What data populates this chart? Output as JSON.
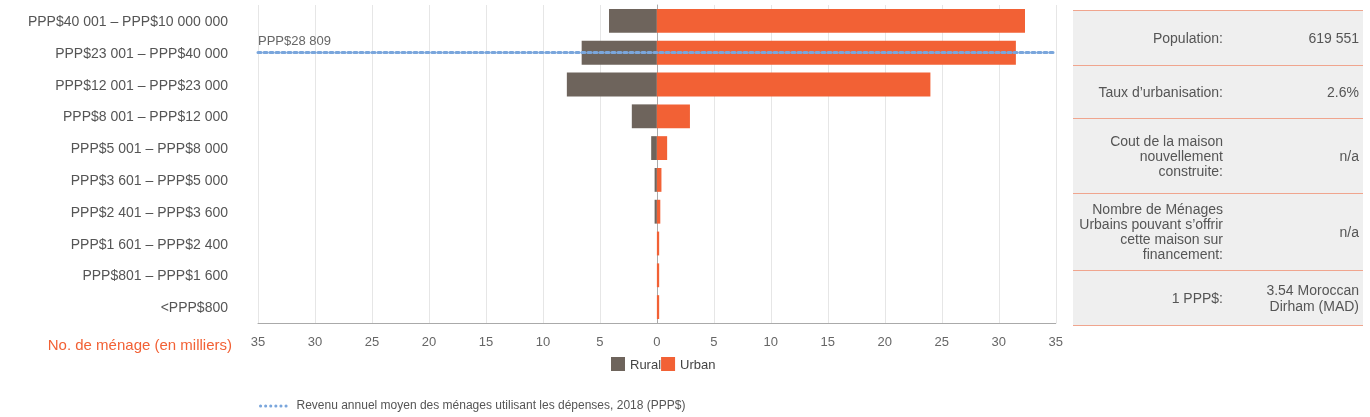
{
  "chart_data": [
    {
      "type": "bar",
      "orientation": "horizontal",
      "stacked": true,
      "xlabel": "No. de ménage (en milliers)",
      "categories": [
        "PPP$40 001 – PPP$10 000 000",
        "PPP$23 001 – PPP$40 000",
        "PPP$12 001 – PPP$23 000",
        "PPP$8 001 – PPP$12 000",
        "PPP$5 001 – PPP$8 000",
        "PPP$3 601 – PPP$5 000",
        "PPP$2 401 – PPP$3 600",
        "PPP$1 601 – PPP$2 400",
        "PPP$801 – PPP$1 600",
        "<PPP$800"
      ],
      "series": [
        {
          "name": "Rural",
          "color": "#6e645c",
          "values": [
            -4.2,
            -6.6,
            -7.9,
            -2.2,
            -0.5,
            -0.2,
            -0.2,
            0,
            0,
            0
          ]
        },
        {
          "name": "Urban",
          "color": "#f26135",
          "values": [
            32.3,
            31.5,
            24.0,
            2.9,
            0.9,
            0.4,
            0.3,
            0.2,
            0.2,
            0.2
          ]
        }
      ],
      "xlim": [
        -35,
        35
      ],
      "xticks": [
        {
          "value": -35,
          "label": "35"
        },
        {
          "value": -30,
          "label": "30"
        },
        {
          "value": -25,
          "label": "25"
        },
        {
          "value": -20,
          "label": "20"
        },
        {
          "value": -15,
          "label": "15"
        },
        {
          "value": -10,
          "label": "10"
        },
        {
          "value": -5,
          "label": "5"
        },
        0,
        5,
        10,
        15,
        20,
        25,
        30,
        35
      ],
      "ref_lines": [
        {
          "axis": "y",
          "value": "PPP$23 001 – PPP$40 000",
          "label": "PPP$28 809",
          "color": "#7aa6dc",
          "line_style": "dotted"
        }
      ],
      "annotations": [
        "Revenu annuel moyen des ménages utilisant les dépenses, 2018 (PPP$)"
      ],
      "grid": "x",
      "legend": "bottom"
    },
    {
      "type": "other",
      "annotations": [
        "Population:",
        "619 551",
        "Taux d’urbanisation:",
        "2.6%",
        "Cout de la maison nouvellement construite:",
        "n/a",
        "Nombre de Ménages Urbains pouvant s’offrir cette maison sur financement:",
        "n/a",
        "1 PPP$:",
        "3.54 Moroccan Dirham (MAD)"
      ]
    }
  ]
}
